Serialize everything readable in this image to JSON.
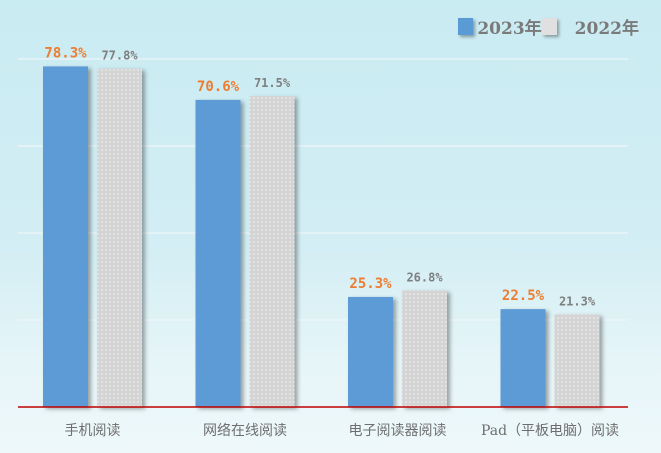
{
  "chart_data": {
    "type": "bar",
    "categories": [
      "手机阅读",
      "网络在线阅读",
      "电子阅读器阅读",
      "Pad（平板电脑）阅读"
    ],
    "series": [
      {
        "name": "2023年",
        "values": [
          78.3,
          70.6,
          25.3,
          22.5
        ],
        "labels": [
          "78.3%",
          "70.6%",
          "25.3%",
          "22.5%"
        ],
        "color": "#5b9bd5",
        "label_color": "#ed7d31"
      },
      {
        "name": "2022年",
        "values": [
          77.8,
          71.5,
          26.8,
          21.3
        ],
        "labels": [
          "77.8%",
          "71.5%",
          "26.8%",
          "21.3%"
        ],
        "color": "#d9d9d9",
        "label_color": "#7f7f7f"
      }
    ],
    "ylim": [
      0,
      80
    ],
    "gridlines": [
      20,
      40,
      60,
      80
    ],
    "grid": true,
    "legend": "top-right",
    "axis_color": "#c00000"
  }
}
